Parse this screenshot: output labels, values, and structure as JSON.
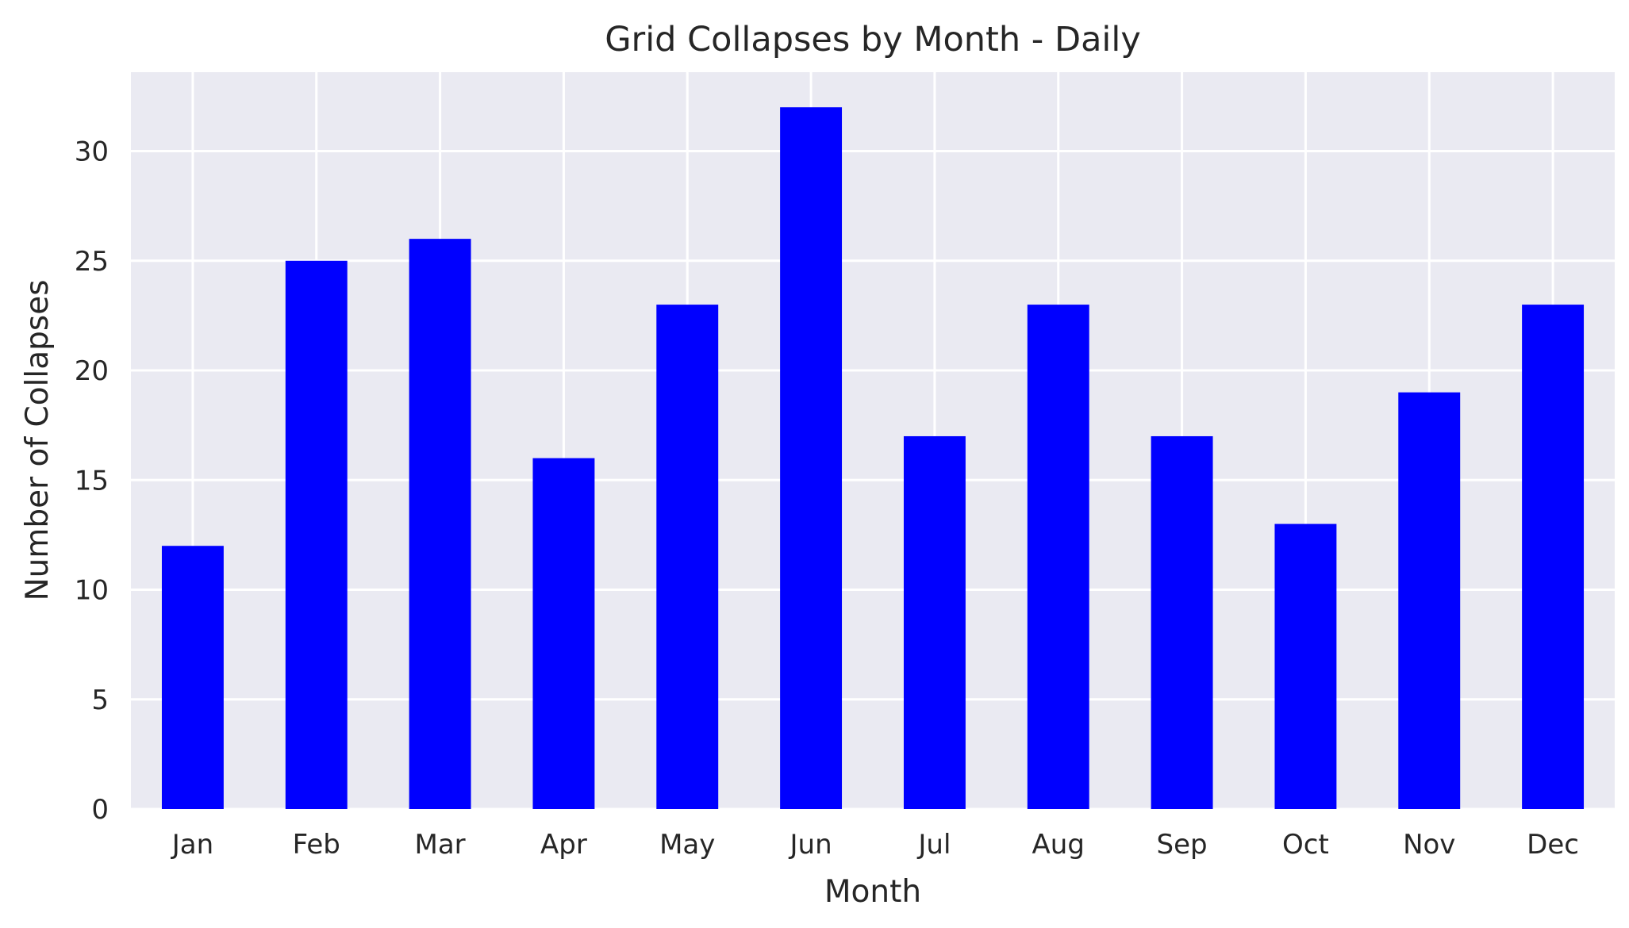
{
  "chart_data": {
    "type": "bar",
    "title": "Grid Collapses by Month - Daily",
    "xlabel": "Month",
    "ylabel": "Number of Collapses",
    "categories": [
      "Jan",
      "Feb",
      "Mar",
      "Apr",
      "May",
      "Jun",
      "Jul",
      "Aug",
      "Sep",
      "Oct",
      "Nov",
      "Dec"
    ],
    "values": [
      12,
      25,
      26,
      16,
      23,
      32,
      17,
      23,
      17,
      13,
      19,
      23
    ],
    "ylim": [
      0,
      33.6
    ],
    "yticks": [
      0,
      5,
      10,
      15,
      20,
      25,
      30
    ],
    "bar_color": "#0000ff",
    "background_color": "#eaeaf2",
    "grid": true,
    "legend": "none"
  }
}
